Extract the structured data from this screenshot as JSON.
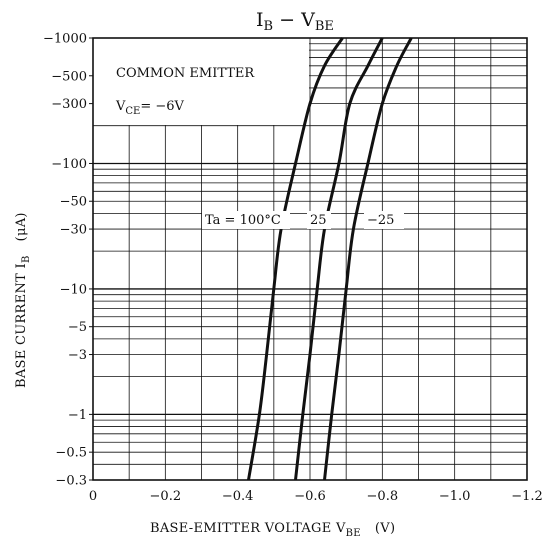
{
  "chart_data": {
    "type": "line",
    "title_main": "I",
    "title_sub": "B",
    "title_dash": " − V",
    "title_sub2": "BE",
    "xlabel_main": "BASE-EMITTER VOLTAGE   V",
    "xlabel_sub": "BE",
    "xlabel_unit": "(V)",
    "ylabel_main": "BASE CURRENT   I",
    "ylabel_sub": "B",
    "ylabel_unit": "(μA)",
    "x_scale": "linear",
    "y_scale": "log",
    "xlim": [
      0,
      -1.2
    ],
    "ylim": [
      -0.3,
      -1000
    ],
    "x_ticks": [
      0,
      -0.2,
      -0.4,
      -0.6,
      -0.8,
      -1.0,
      -1.2
    ],
    "x_tick_labels": [
      "0",
      "−0.2",
      "−0.4",
      "−0.6",
      "−0.8",
      "−1.0",
      "−1.2"
    ],
    "y_ticks": [
      -0.3,
      -0.5,
      -1,
      -3,
      -5,
      -10,
      -30,
      -50,
      -100,
      -300,
      -500,
      -1000
    ],
    "y_tick_labels": [
      "−0.3",
      "−0.5",
      "−1",
      "−3",
      "−5",
      "−10",
      "−30",
      "−50",
      "−100",
      "−300",
      "−500",
      "−1000"
    ],
    "grid": true,
    "annotations": {
      "condition_line1": "COMMON EMITTER",
      "condition_v": "V",
      "condition_sub": "CE",
      "condition_rest": "= −6V"
    },
    "series": [
      {
        "name": "Ta = 100°C",
        "x": [
          -0.43,
          -0.46,
          -0.48,
          -0.5,
          -0.52,
          -0.56,
          -0.6,
          -0.64,
          -0.69
        ],
        "y": [
          -0.3,
          -1,
          -3,
          -10,
          -30,
          -100,
          -300,
          -600,
          -1000
        ]
      },
      {
        "name": "25",
        "x": [
          -0.56,
          -0.58,
          -0.6,
          -0.62,
          -0.64,
          -0.68,
          -0.71,
          -0.76,
          -0.8
        ],
        "y": [
          -0.3,
          -1,
          -3,
          -10,
          -30,
          -100,
          -300,
          -600,
          -1000
        ]
      },
      {
        "name": "−25",
        "x": [
          -0.64,
          -0.66,
          -0.68,
          -0.7,
          -0.72,
          -0.76,
          -0.8,
          -0.84,
          -0.88
        ],
        "y": [
          -0.3,
          -1,
          -3,
          -10,
          -30,
          -100,
          -300,
          -600,
          -1000
        ]
      }
    ]
  }
}
